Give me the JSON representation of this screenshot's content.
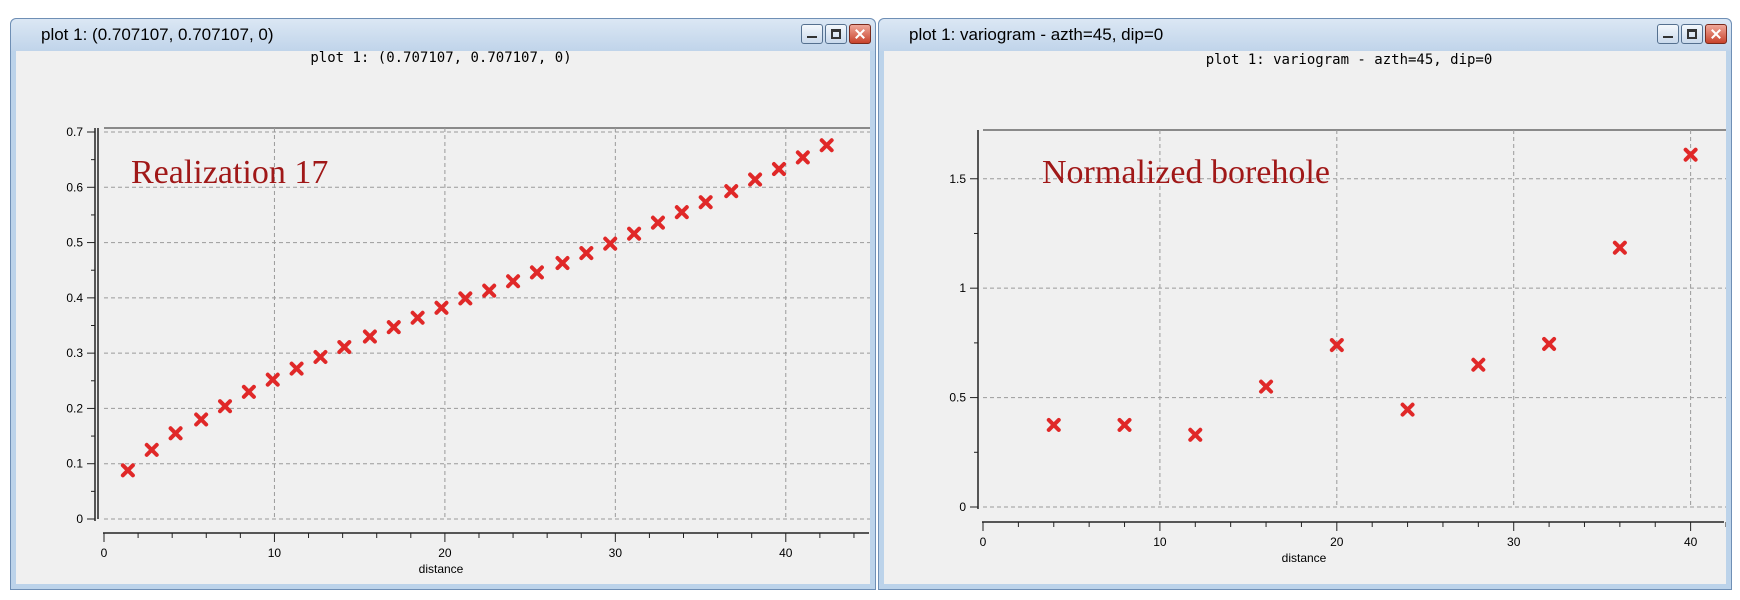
{
  "windows": [
    {
      "id": "left",
      "window_title": "plot 1:  (0.707107, 0.707107, 0)",
      "controls": [
        "minimize-icon",
        "maximize-icon",
        "close-icon"
      ],
      "chart_data": {
        "type": "scatter",
        "title": "plot 1:  (0.707107, 0.707107, 0)",
        "annotation": "Realization 17",
        "xlabel": "distance",
        "ylabel": "",
        "xlim": [
          0,
          45
        ],
        "ylim": [
          0,
          0.7
        ],
        "x_ticks": [
          0,
          10,
          20,
          30,
          40
        ],
        "y_ticks": [
          0,
          0.1,
          0.2,
          0.3,
          0.4,
          0.5,
          0.6,
          0.7
        ],
        "grid": true,
        "marker": "x",
        "marker_color": "#e02828",
        "annotation_color": "#a01818",
        "x": [
          1.4,
          2.8,
          4.2,
          5.7,
          7.1,
          8.5,
          9.9,
          11.3,
          12.7,
          14.1,
          15.6,
          17.0,
          18.4,
          19.8,
          21.2,
          22.6,
          24.0,
          25.4,
          26.9,
          28.3,
          29.7,
          31.1,
          32.5,
          33.9,
          35.3,
          36.8,
          38.2,
          39.6,
          41.0,
          42.4
        ],
        "y": [
          0.088,
          0.125,
          0.155,
          0.18,
          0.204,
          0.23,
          0.252,
          0.272,
          0.293,
          0.311,
          0.33,
          0.347,
          0.364,
          0.382,
          0.399,
          0.413,
          0.43,
          0.446,
          0.463,
          0.481,
          0.498,
          0.516,
          0.536,
          0.555,
          0.573,
          0.593,
          0.614,
          0.633,
          0.654,
          0.676
        ]
      }
    },
    {
      "id": "right",
      "window_title": "plot 1:  variogram - azth=45, dip=0",
      "controls": [
        "minimize-icon",
        "maximize-icon",
        "close-icon"
      ],
      "chart_data": {
        "type": "scatter",
        "title": "plot 1:  variogram - azth=45, dip=0",
        "annotation": "Normalized borehole",
        "xlabel": "distance",
        "ylabel": "",
        "xlim": [
          0,
          42
        ],
        "ylim": [
          0,
          1.7
        ],
        "x_ticks": [
          0,
          10,
          20,
          30,
          40
        ],
        "y_ticks": [
          0,
          0.5,
          1,
          1.5
        ],
        "grid": true,
        "marker": "x",
        "marker_color": "#e02828",
        "annotation_color": "#a01818",
        "x": [
          4,
          8,
          12,
          16,
          20,
          24,
          28,
          32,
          36,
          40
        ],
        "y": [
          0.375,
          0.375,
          0.33,
          0.55,
          0.74,
          0.445,
          0.65,
          0.745,
          1.185,
          1.61
        ]
      }
    }
  ]
}
